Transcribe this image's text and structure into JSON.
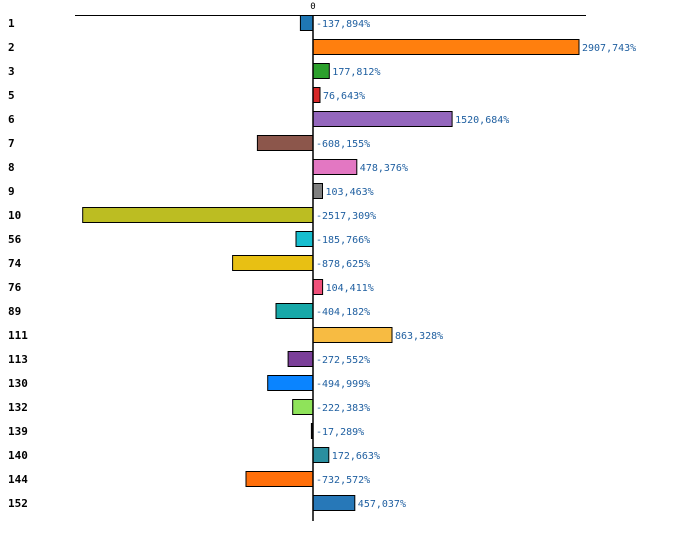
{
  "chart_data": {
    "type": "bar",
    "orientation": "horizontal",
    "title": "",
    "xlabel": "",
    "ylabel": "",
    "xlim": [
      -2700,
      3000
    ],
    "zero_tick": "0",
    "categories": [
      "1",
      "2",
      "3",
      "5",
      "6",
      "7",
      "8",
      "9",
      "10",
      "56",
      "74",
      "76",
      "89",
      "111",
      "113",
      "130",
      "132",
      "139",
      "140",
      "144",
      "152"
    ],
    "values": [
      -137.894,
      2907.743,
      177.812,
      76.643,
      1520.684,
      -608.155,
      478.376,
      103.463,
      -2517.309,
      -185.766,
      -878.625,
      104.411,
      -404.182,
      863.328,
      -272.552,
      -494.999,
      -222.383,
      -17.289,
      172.663,
      -732.572,
      457.037
    ],
    "labels": [
      "-137,894%",
      "2907,743%",
      "177,812%",
      "76,643%",
      "1520,684%",
      "-608,155%",
      "478,376%",
      "103,463%",
      "-2517,309%",
      "-185,766%",
      "-878,625%",
      "104,411%",
      "-404,182%",
      "863,328%",
      "-272,552%",
      "-494,999%",
      "-222,383%",
      "-17,289%",
      "172,663%",
      "-732,572%",
      "457,037%"
    ],
    "colors": [
      "#1f77b4",
      "#ff7f0e",
      "#2ca02c",
      "#d62728",
      "#9467bd",
      "#8c564b",
      "#e377c2",
      "#7f7f7f",
      "#bcbd22",
      "#17becf",
      "#e8c013",
      "#f0507a",
      "#17a8a8",
      "#f7bb42",
      "#7b3f99",
      "#0a84ff",
      "#8fe35a",
      "#1a1a1a",
      "#2a8fa0",
      "#ff6f0a",
      "#2778b8"
    ]
  }
}
